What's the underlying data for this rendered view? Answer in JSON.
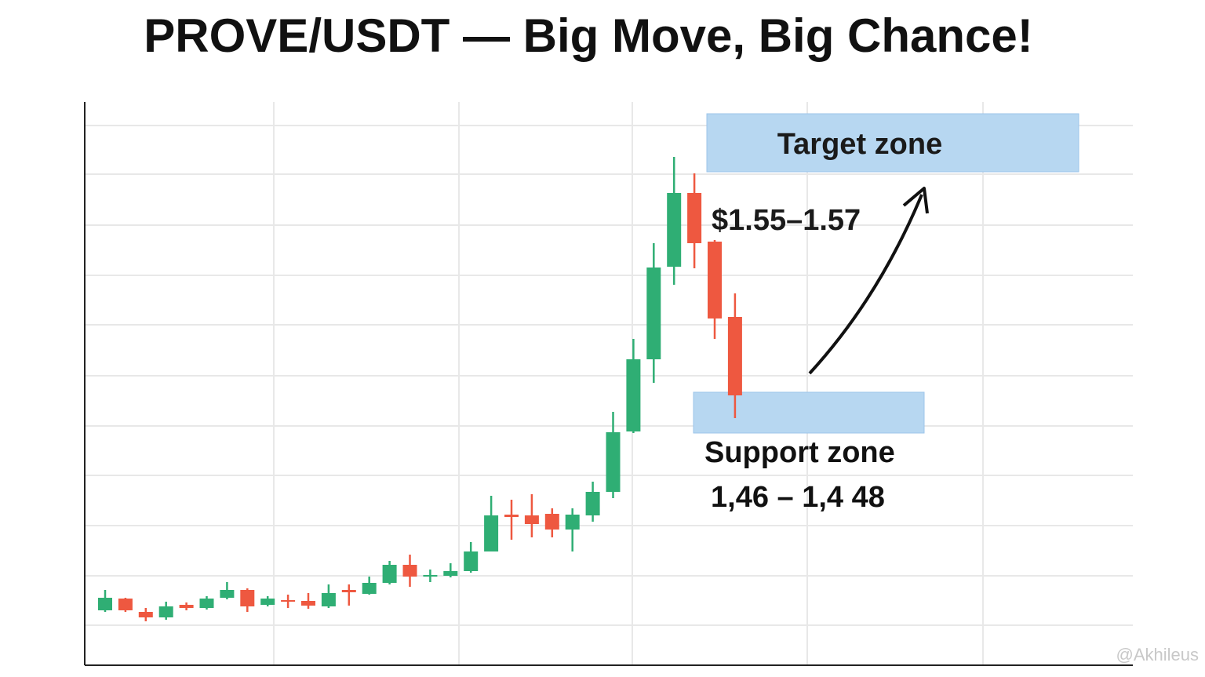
{
  "chart_data": {
    "type": "candlestick",
    "title": "PROVE/USDT — Big Move, Big Chance!",
    "up_color": "#2fae74",
    "down_color": "#ee5840",
    "ylim": [
      0,
      718
    ],
    "open": [
      70,
      85,
      68,
      61,
      77,
      73,
      86,
      96,
      77,
      83,
      82,
      75,
      96,
      91,
      105,
      128,
      113,
      114,
      120,
      145,
      192,
      191,
      193,
      173,
      191,
      221,
      298,
      390,
      508,
      602,
      540,
      444
    ],
    "close": [
      86,
      70,
      61,
      75,
      73,
      85,
      96,
      75,
      85,
      81,
      76,
      92,
      93,
      105,
      128,
      113,
      115,
      120,
      145,
      191,
      189,
      180,
      173,
      192,
      221,
      297,
      390,
      507,
      602,
      538,
      442,
      344
    ],
    "high": [
      96,
      86,
      73,
      81,
      80,
      88,
      106,
      98,
      88,
      90,
      92,
      103,
      103,
      113,
      133,
      141,
      122,
      130,
      157,
      216,
      211,
      218,
      200,
      200,
      234,
      323,
      416,
      538,
      648,
      627,
      542,
      474
    ],
    "low": [
      68,
      68,
      56,
      58,
      70,
      71,
      84,
      68,
      75,
      73,
      72,
      73,
      76,
      90,
      103,
      100,
      106,
      112,
      118,
      145,
      160,
      163,
      163,
      145,
      183,
      213,
      296,
      360,
      485,
      506,
      416,
      315
    ],
    "annotations": {
      "target_zone": "Target zone",
      "target_price": "$1.55–1.57",
      "support_zone": "Support zone",
      "support_price": "1,46 – 1,4 48"
    },
    "watermark": "@Akhileus"
  }
}
